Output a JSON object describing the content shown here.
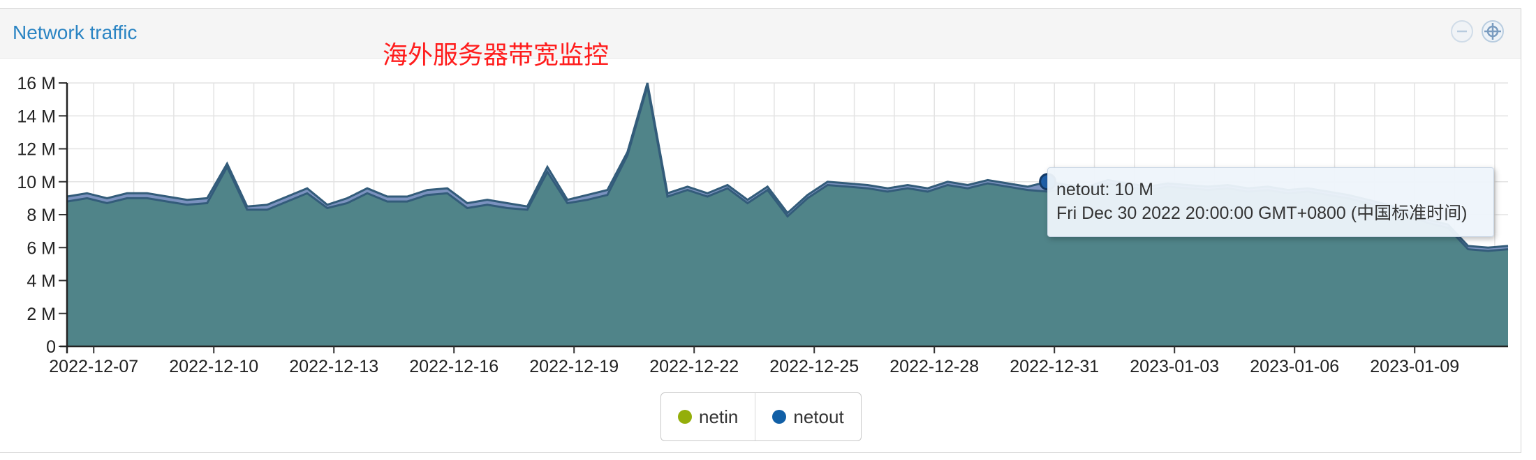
{
  "panel": {
    "title": "Network traffic",
    "buttons": [
      {
        "icon": "minus-circle-icon"
      },
      {
        "icon": "gear-icon"
      }
    ]
  },
  "annotation": "海外服务器带宽监控",
  "legend": [
    {
      "name": "netin",
      "color": "#94ae0a"
    },
    {
      "name": "netout",
      "color": "#115fa6"
    }
  ],
  "tooltip": {
    "line1": "netout: 10 M",
    "line2": "Fri Dec 30 2022 20:00:00 GMT+0800 (中国标准时间)"
  },
  "chart_data": {
    "type": "area",
    "title": "",
    "xlabel": "",
    "ylabel": "",
    "ylim": [
      0,
      16000000
    ],
    "yticks": [
      0,
      2000000,
      4000000,
      6000000,
      8000000,
      10000000,
      12000000,
      14000000,
      16000000
    ],
    "ytick_labels": [
      "0",
      "2 M",
      "4 M",
      "6 M",
      "8 M",
      "10 M",
      "12 M",
      "14 M",
      "16 M"
    ],
    "x_start": "2022-12-06 08:00",
    "x_end": "2023-01-11 08:00",
    "xtick_labels": [
      "2022-12-07",
      "2022-12-10",
      "2022-12-13",
      "2022-12-16",
      "2022-12-19",
      "2022-12-22",
      "2022-12-25",
      "2022-12-28",
      "2022-12-31",
      "2023-01-03",
      "2023-01-06",
      "2023-01-09"
    ],
    "grid": true,
    "fill_color": "#4a8282",
    "line_color": "#335c7a",
    "series": [
      {
        "name": "netin",
        "color": "#94ae0a",
        "x": [
          "2022-12-06 08:00",
          "2022-12-06 20:00",
          "2022-12-07 08:00",
          "2022-12-07 20:00",
          "2022-12-08 08:00",
          "2022-12-08 20:00",
          "2022-12-09 08:00",
          "2022-12-09 20:00",
          "2022-12-10 08:00",
          "2022-12-10 20:00",
          "2022-12-11 08:00",
          "2022-12-11 20:00",
          "2022-12-12 08:00",
          "2022-12-12 20:00",
          "2022-12-13 08:00",
          "2022-12-13 20:00",
          "2022-12-14 08:00",
          "2022-12-14 20:00",
          "2022-12-15 08:00",
          "2022-12-15 20:00",
          "2022-12-16 08:00",
          "2022-12-16 20:00",
          "2022-12-17 08:00",
          "2022-12-17 20:00",
          "2022-12-18 08:00",
          "2022-12-18 20:00",
          "2022-12-19 08:00",
          "2022-12-19 20:00",
          "2022-12-20 08:00",
          "2022-12-20 20:00",
          "2022-12-21 08:00",
          "2022-12-21 20:00",
          "2022-12-22 08:00",
          "2022-12-22 20:00",
          "2022-12-23 08:00",
          "2022-12-23 20:00",
          "2022-12-24 08:00",
          "2022-12-24 20:00",
          "2022-12-25 08:00",
          "2022-12-25 20:00",
          "2022-12-26 08:00",
          "2022-12-26 20:00",
          "2022-12-27 08:00",
          "2022-12-27 20:00",
          "2022-12-28 08:00",
          "2022-12-28 20:00",
          "2022-12-29 08:00",
          "2022-12-29 20:00",
          "2022-12-30 08:00",
          "2022-12-30 20:00",
          "2022-12-31 08:00",
          "2022-12-31 20:00",
          "2023-01-01 08:00",
          "2023-01-01 20:00",
          "2023-01-02 08:00",
          "2023-01-02 20:00",
          "2023-01-03 08:00",
          "2023-01-03 20:00",
          "2023-01-04 08:00",
          "2023-01-04 20:00",
          "2023-01-05 08:00",
          "2023-01-05 20:00",
          "2023-01-06 08:00",
          "2023-01-06 20:00",
          "2023-01-07 08:00",
          "2023-01-07 20:00",
          "2023-01-08 08:00",
          "2023-01-08 20:00",
          "2023-01-09 08:00",
          "2023-01-09 20:00",
          "2023-01-10 08:00",
          "2023-01-10 20:00",
          "2023-01-11 08:00"
        ],
        "values": [
          8.8,
          9.0,
          8.7,
          9.0,
          9.0,
          8.8,
          8.6,
          8.7,
          10.9,
          8.3,
          8.3,
          8.8,
          9.3,
          8.4,
          8.7,
          9.3,
          8.8,
          8.8,
          9.2,
          9.3,
          8.4,
          8.6,
          8.4,
          8.3,
          10.6,
          8.7,
          8.9,
          9.2,
          11.6,
          15.8,
          9.1,
          9.5,
          9.1,
          9.6,
          8.7,
          9.5,
          7.9,
          9.0,
          9.8,
          9.7,
          9.6,
          9.4,
          9.6,
          9.4,
          9.8,
          9.6,
          9.9,
          9.7,
          9.5,
          9.4,
          9.6,
          9.5,
          9.9,
          9.7,
          9.5,
          9.7,
          9.6,
          9.5,
          9.6,
          9.4,
          9.5,
          9.3,
          9.4,
          9.2,
          9.0,
          8.7,
          8.4,
          8.0,
          7.5,
          7.2,
          5.9,
          5.8,
          5.9
        ]
      },
      {
        "name": "netout",
        "color": "#115fa6",
        "x": [
          "2022-12-06 08:00",
          "2022-12-06 20:00",
          "2022-12-07 08:00",
          "2022-12-07 20:00",
          "2022-12-08 08:00",
          "2022-12-08 20:00",
          "2022-12-09 08:00",
          "2022-12-09 20:00",
          "2022-12-10 08:00",
          "2022-12-10 20:00",
          "2022-12-11 08:00",
          "2022-12-11 20:00",
          "2022-12-12 08:00",
          "2022-12-12 20:00",
          "2022-12-13 08:00",
          "2022-12-13 20:00",
          "2022-12-14 08:00",
          "2022-12-14 20:00",
          "2022-12-15 08:00",
          "2022-12-15 20:00",
          "2022-12-16 08:00",
          "2022-12-16 20:00",
          "2022-12-17 08:00",
          "2022-12-17 20:00",
          "2022-12-18 08:00",
          "2022-12-18 20:00",
          "2022-12-19 08:00",
          "2022-12-19 20:00",
          "2022-12-20 08:00",
          "2022-12-20 20:00",
          "2022-12-21 08:00",
          "2022-12-21 20:00",
          "2022-12-22 08:00",
          "2022-12-22 20:00",
          "2022-12-23 08:00",
          "2022-12-23 20:00",
          "2022-12-24 08:00",
          "2022-12-24 20:00",
          "2022-12-25 08:00",
          "2022-12-25 20:00",
          "2022-12-26 08:00",
          "2022-12-26 20:00",
          "2022-12-27 08:00",
          "2022-12-27 20:00",
          "2022-12-28 08:00",
          "2022-12-28 20:00",
          "2022-12-29 08:00",
          "2022-12-29 20:00",
          "2022-12-30 08:00",
          "2022-12-30 20:00",
          "2022-12-31 08:00",
          "2022-12-31 20:00",
          "2023-01-01 08:00",
          "2023-01-01 20:00",
          "2023-01-02 08:00",
          "2023-01-02 20:00",
          "2023-01-03 08:00",
          "2023-01-03 20:00",
          "2023-01-04 08:00",
          "2023-01-04 20:00",
          "2023-01-05 08:00",
          "2023-01-05 20:00",
          "2023-01-06 08:00",
          "2023-01-06 20:00",
          "2023-01-07 08:00",
          "2023-01-07 20:00",
          "2023-01-08 08:00",
          "2023-01-08 20:00",
          "2023-01-09 08:00",
          "2023-01-09 20:00",
          "2023-01-10 08:00",
          "2023-01-10 20:00",
          "2023-01-11 08:00"
        ],
        "values": [
          9.1,
          9.3,
          9.0,
          9.3,
          9.3,
          9.1,
          8.9,
          9.0,
          11.1,
          8.5,
          8.6,
          9.1,
          9.6,
          8.6,
          9.0,
          9.6,
          9.1,
          9.1,
          9.5,
          9.6,
          8.7,
          8.9,
          8.7,
          8.5,
          10.9,
          8.9,
          9.2,
          9.5,
          11.8,
          16.0,
          9.3,
          9.7,
          9.3,
          9.8,
          8.9,
          9.7,
          8.1,
          9.2,
          10.0,
          9.9,
          9.8,
          9.6,
          9.8,
          9.6,
          10.0,
          9.8,
          10.1,
          9.9,
          9.7,
          10.0,
          9.8,
          9.7,
          10.1,
          9.9,
          9.7,
          9.9,
          9.8,
          9.7,
          9.8,
          9.6,
          9.7,
          9.5,
          9.6,
          9.4,
          9.2,
          8.9,
          8.6,
          8.2,
          7.7,
          7.4,
          6.1,
          6.0,
          6.1
        ]
      }
    ],
    "highlight": {
      "series": "netout",
      "x": "2022-12-30 20:00",
      "value": 10.0
    }
  }
}
